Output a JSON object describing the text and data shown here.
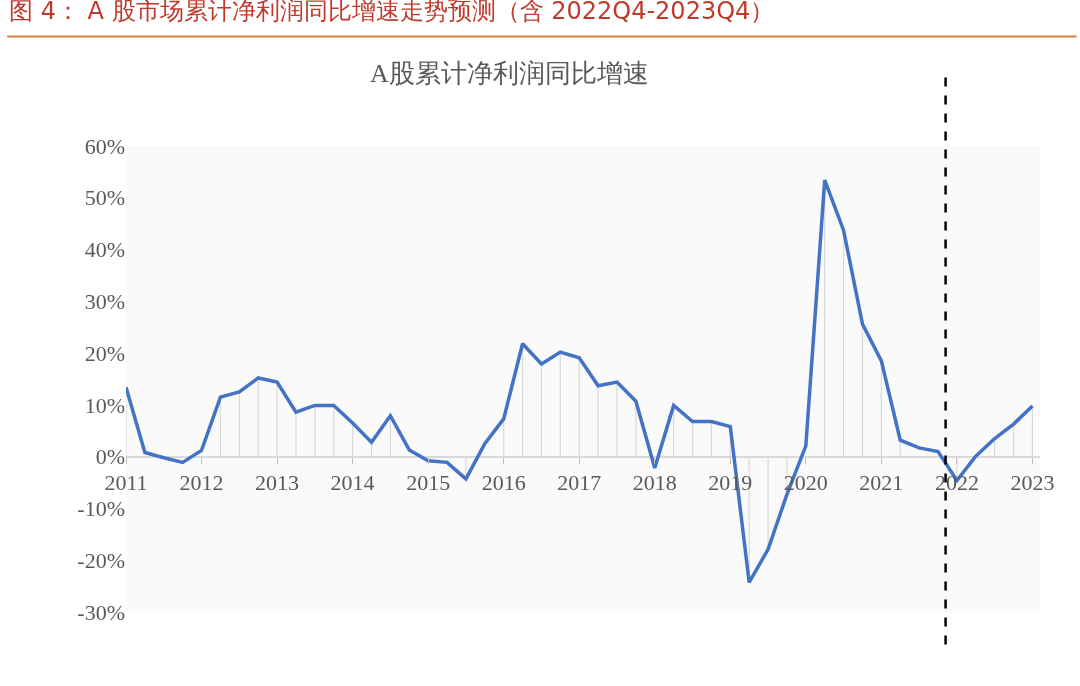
{
  "chart_data": {
    "type": "line",
    "title": "图 4： A 股市场累计净利润同比增速走势预测（含 2022Q4-2023Q4）",
    "subtitle": "A股累计净利润同比增速",
    "x": [
      2011,
      2011.25,
      2011.5,
      2011.75,
      2012,
      2012.25,
      2012.5,
      2012.75,
      2013,
      2013.25,
      2013.5,
      2013.75,
      2014,
      2014.25,
      2014.5,
      2014.75,
      2015,
      2015.25,
      2015.5,
      2015.75,
      2016,
      2016.25,
      2016.5,
      2016.75,
      2017,
      2017.25,
      2017.5,
      2017.75,
      2018,
      2018.25,
      2018.5,
      2018.75,
      2019,
      2019.25,
      2019.5,
      2019.75,
      2020,
      2020.25,
      2020.5,
      2020.75,
      2021,
      2021.25,
      2021.5,
      2021.75,
      2022,
      2022.25,
      2022.5,
      2022.75,
      2023
    ],
    "series": [
      {
        "color": "#4472c4",
        "values": [
          13.4,
          0.8,
          -0.2,
          -1.1,
          1.2,
          11.5,
          12.5,
          15.2,
          14.4,
          8.6,
          9.9,
          9.9,
          6.5,
          2.8,
          7.9,
          1.3,
          -0.8,
          -1.1,
          -4.3,
          2.5,
          7.3,
          21.8,
          17.9,
          20.2,
          19.1,
          13.7,
          14.4,
          10.7,
          -2.2,
          9.9,
          6.8,
          6.8,
          5.8,
          -24.3,
          -17.9,
          -7.3,
          2.1,
          53.4,
          43.7,
          25.6,
          18.5,
          3.2,
          1.7,
          1.0,
          -4.6,
          0.1,
          3.5,
          6.3,
          9.8
        ],
        "errors": [
          [
            0,
            13.4
          ],
          null,
          null,
          null,
          null,
          [
            0,
            11.5
          ],
          [
            0,
            12.5
          ],
          [
            0,
            15.2
          ],
          [
            0,
            14.4
          ],
          [
            0,
            8.6
          ],
          [
            0,
            9.9
          ],
          [
            0,
            9.9
          ],
          [
            0,
            6.5
          ],
          [
            0,
            2.8
          ],
          [
            0,
            7.9
          ],
          null,
          null,
          null,
          [
            -4.3,
            0
          ],
          null,
          [
            0,
            7.3
          ],
          [
            0,
            21.8
          ],
          [
            0,
            17.9
          ],
          [
            0,
            20.2
          ],
          [
            0,
            19.1
          ],
          [
            0,
            13.7
          ],
          [
            0,
            14.4
          ],
          [
            0,
            10.7
          ],
          null,
          [
            0,
            9.9
          ],
          [
            0,
            6.8
          ],
          [
            0,
            6.8
          ],
          [
            0,
            5.8
          ],
          [
            -24.3,
            0
          ],
          [
            -17.9,
            0
          ],
          [
            -7.3,
            0
          ],
          null,
          [
            0,
            53.4
          ],
          [
            0,
            43.7
          ],
          [
            0,
            25.6
          ],
          [
            0,
            18.5
          ],
          [
            0,
            3.2
          ],
          null,
          null,
          [
            -4.6,
            0
          ],
          null,
          [
            0,
            3.5
          ],
          [
            0,
            6.3
          ],
          [
            0,
            9.8
          ]
        ]
      }
    ],
    "xlim": [
      2011,
      2023.1
    ],
    "xticks": [
      2011,
      2012,
      2013,
      2014,
      2015,
      2016,
      2017,
      2018,
      2019,
      2020,
      2021,
      2022,
      2023
    ],
    "ylim": [
      -30,
      60
    ],
    "yticks": [
      {
        "value": -30,
        "label": "-30%"
      },
      {
        "value": -20,
        "label": "-20%"
      },
      {
        "value": -10,
        "label": "-10%"
      },
      {
        "value": 0,
        "label": "0%"
      },
      {
        "value": 10,
        "label": "10%"
      },
      {
        "value": 20,
        "label": "20%"
      },
      {
        "value": 30,
        "label": "30%"
      },
      {
        "value": 40,
        "label": "40%"
      },
      {
        "value": 50,
        "label": "50%"
      },
      {
        "value": 60,
        "label": "60%"
      }
    ],
    "ref_lines": [
      {
        "axis": "x",
        "value": 2021.85,
        "color": "#000000",
        "line_style": "dashed"
      }
    ],
    "marker": "none",
    "line_style": "solid"
  }
}
